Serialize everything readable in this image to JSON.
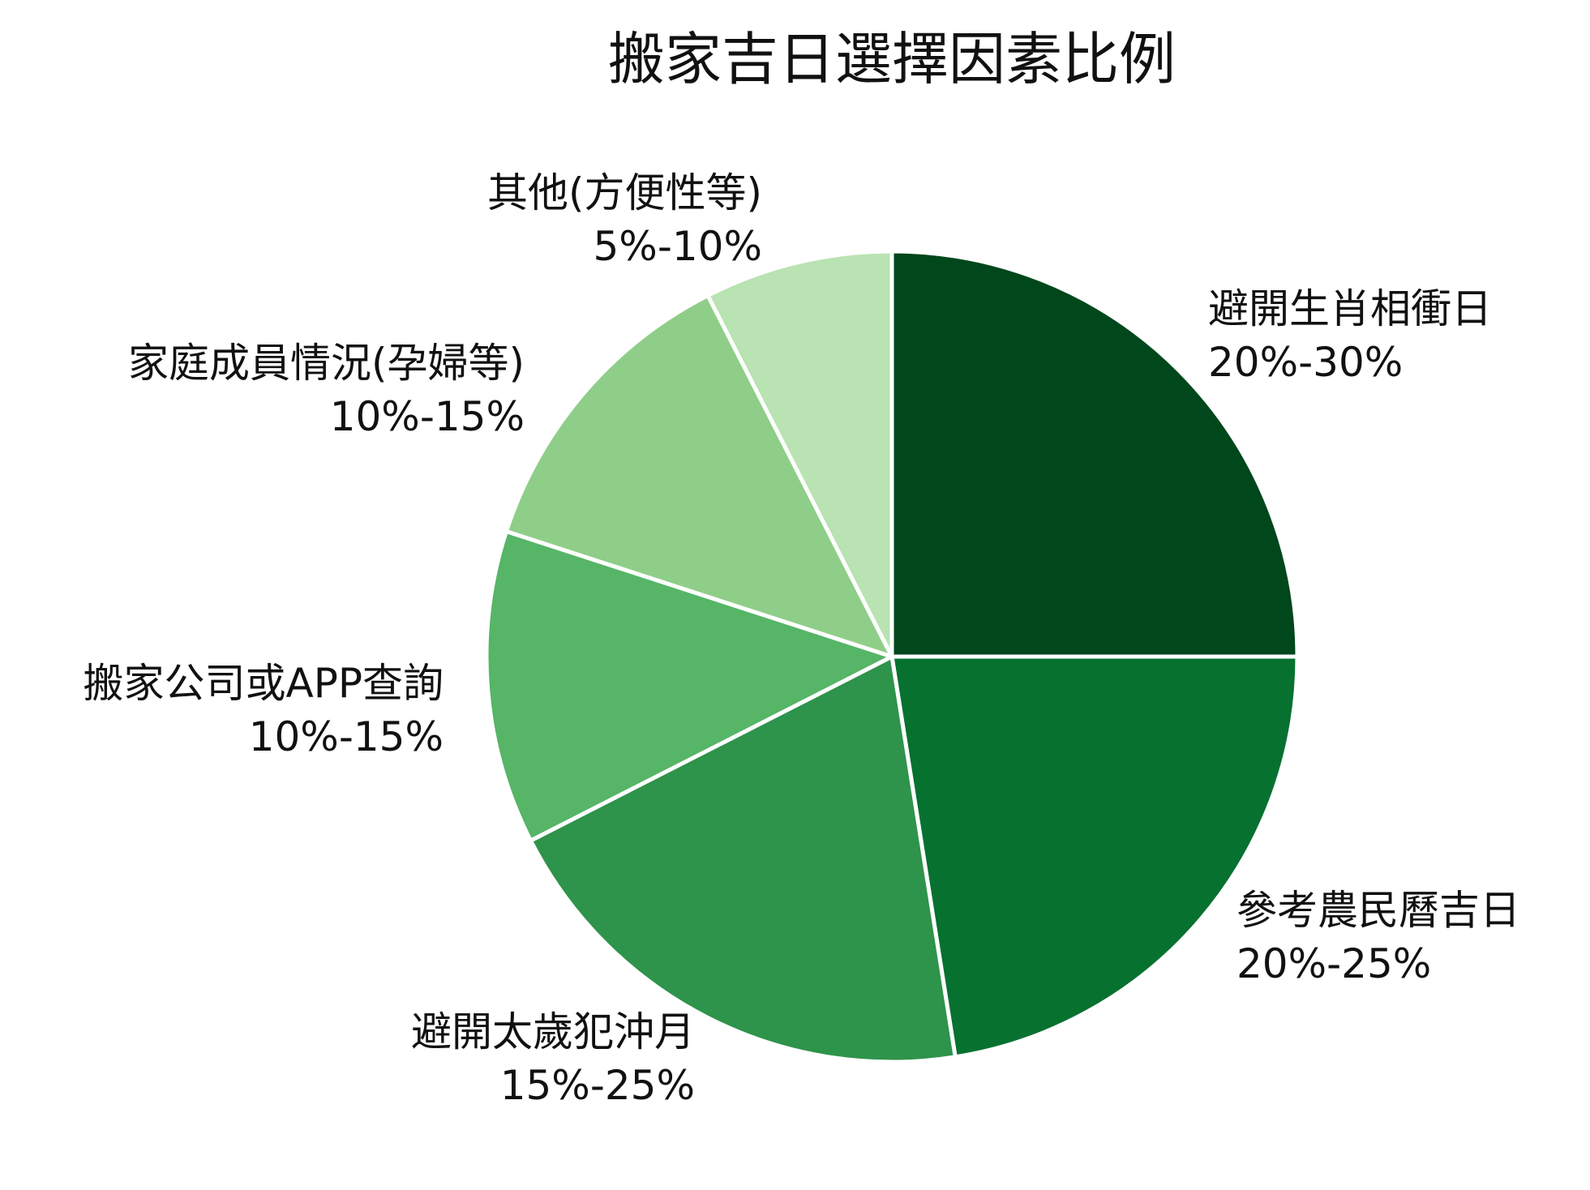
{
  "chart_data": {
    "type": "pie",
    "title": "搬家吉日選擇因素比例",
    "start": "top",
    "direction": "clockwise",
    "slices": [
      {
        "label": "避開生肖相衝日",
        "range": "20%-30%",
        "value": 25,
        "color": "#00471c"
      },
      {
        "label": "參考農民曆吉日",
        "range": "20%-25%",
        "value": 22.5,
        "color": "#077130"
      },
      {
        "label": "避開太歲犯沖月",
        "range": "15%-25%",
        "value": 20,
        "color": "#2e934b"
      },
      {
        "label": "搬家公司或APP查詢",
        "range": "10%-15%",
        "value": 12.5,
        "color": "#56b567"
      },
      {
        "label": "家庭成員情況(孕婦等)",
        "range": "10%-15%",
        "value": 12.5,
        "color": "#8fce89"
      },
      {
        "label": "其他(方便性等)",
        "range": "5%-10%",
        "value": 7.5,
        "color": "#b9e3b2"
      }
    ]
  }
}
